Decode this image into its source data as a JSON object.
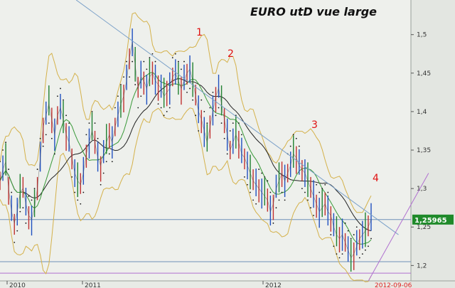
{
  "title": "EURO utD vue large",
  "chart_data": {
    "type": "line",
    "title": "EURO utD vue large",
    "ylim": [
      1.18,
      1.545
    ],
    "yticks": [
      "1,5",
      "1,45",
      "1,4",
      "1,35",
      "1,3",
      "1,25",
      "1,2"
    ],
    "ytick_values": [
      1.5,
      1.45,
      1.4,
      1.35,
      1.3,
      1.25,
      1.2
    ],
    "xticks": [
      "2010",
      "2011",
      "2012"
    ],
    "last_price_label": "1,25965",
    "last_price": 1.25965,
    "last_date_label": "2012-09-06",
    "wave_labels": [
      {
        "text": "1",
        "x": "2011-05",
        "y": 1.47
      },
      {
        "text": "2",
        "x": "2011-08",
        "y": 1.45
      },
      {
        "text": "3",
        "x": "2012-02",
        "y": 1.35
      },
      {
        "text": "4",
        "x": "2012-09",
        "y": 1.285
      }
    ],
    "horizontal_lines": [
      {
        "y": 1.2597,
        "color": "#6f8fb8"
      },
      {
        "y": 1.205,
        "color": "#6f8fb8"
      },
      {
        "y": 1.19,
        "color": "#b070d0"
      }
    ],
    "trendlines": [
      {
        "name": "resistance",
        "color": "#7aa0c8",
        "points": [
          [
            "2010-12",
            1.545
          ],
          [
            "2012-10",
            1.24
          ]
        ]
      },
      {
        "name": "support",
        "color": "#b070d0",
        "points": [
          [
            "2012-08",
            1.18
          ],
          [
            "2012-12",
            1.32
          ]
        ]
      }
    ],
    "series": [
      {
        "values": [
          1.31,
          1.325,
          1.335,
          1.3,
          1.27,
          1.255,
          1.27,
          1.295,
          1.3,
          1.28,
          1.265,
          1.26,
          1.275,
          1.3,
          1.34,
          1.38,
          1.395,
          1.41,
          1.39,
          1.37,
          1.395,
          1.405,
          1.39,
          1.37,
          1.36,
          1.34,
          1.32,
          1.31,
          1.305,
          1.32,
          1.345,
          1.36,
          1.375,
          1.36,
          1.34,
          1.33,
          1.345,
          1.36,
          1.37,
          1.36,
          1.38,
          1.395,
          1.41,
          1.42,
          1.44,
          1.47,
          1.49,
          1.46,
          1.43,
          1.445,
          1.44,
          1.43,
          1.445,
          1.45,
          1.44,
          1.435,
          1.43,
          1.42,
          1.425,
          1.43,
          1.445,
          1.45,
          1.44,
          1.43,
          1.44,
          1.45,
          1.455,
          1.44,
          1.42,
          1.4,
          1.39,
          1.375,
          1.36,
          1.38,
          1.4,
          1.42,
          1.43,
          1.41,
          1.39,
          1.37,
          1.35,
          1.36,
          1.37,
          1.36,
          1.345,
          1.34,
          1.33,
          1.32,
          1.31,
          1.305,
          1.3,
          1.295,
          1.29,
          1.285,
          1.27,
          1.28,
          1.3,
          1.31,
          1.32,
          1.31,
          1.32,
          1.33,
          1.345,
          1.34,
          1.33,
          1.325,
          1.32,
          1.31,
          1.3,
          1.29,
          1.28,
          1.27,
          1.275,
          1.28,
          1.27,
          1.265,
          1.25,
          1.24,
          1.235,
          1.24,
          1.23,
          1.22,
          1.21,
          1.215,
          1.225,
          1.235,
          1.24,
          1.245,
          1.25,
          1.26
        ]
      }
    ]
  }
}
